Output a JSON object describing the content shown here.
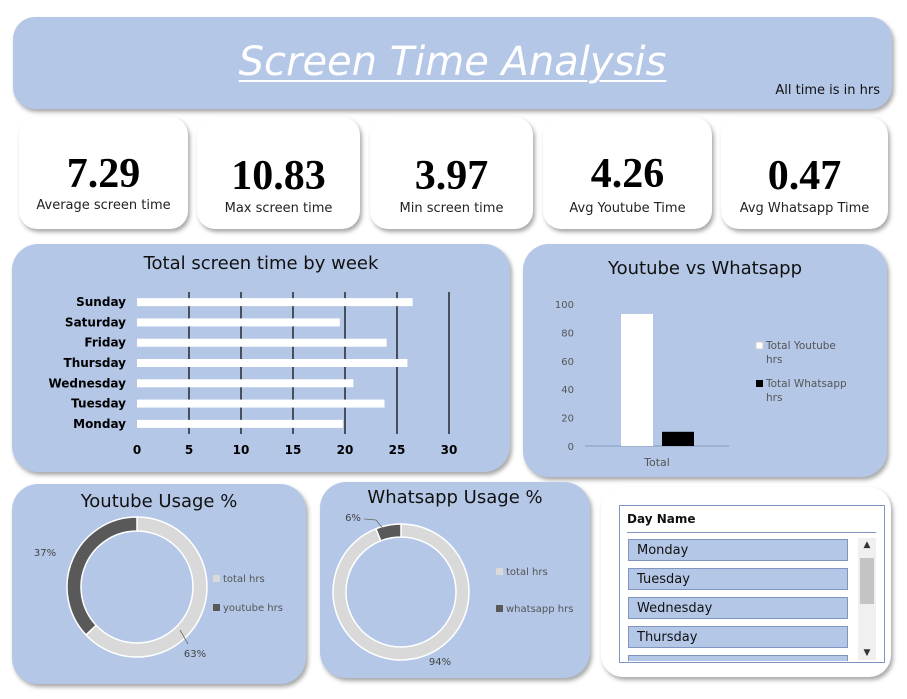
{
  "header": {
    "title": "Screen Time Analysis",
    "note": "All time is in hrs"
  },
  "kpis": [
    {
      "value": "7.29",
      "label": "Average screen time"
    },
    {
      "value": "10.83",
      "label": "Max screen time"
    },
    {
      "value": "3.97",
      "label": "Min screen time"
    },
    {
      "value": "4.26",
      "label": "Avg Youtube Time"
    },
    {
      "value": "0.47",
      "label": "Avg Whatsapp Time"
    }
  ],
  "slicer": {
    "title": "Day Name",
    "items": [
      "Monday",
      "Tuesday",
      "Wednesday",
      "Thursday"
    ]
  },
  "colors": {
    "panel": "#b4c7e7",
    "dark": "#595959",
    "light": "#d9d9d9",
    "bar": "#ffffff"
  },
  "chart_data": [
    {
      "type": "bar",
      "orientation": "horizontal",
      "title": "Total screen time by week",
      "categories": [
        "Sunday",
        "Saturday",
        "Friday",
        "Thursday",
        "Wednesday",
        "Tuesday",
        "Monday"
      ],
      "values": [
        26.5,
        19.5,
        24,
        26,
        20.8,
        23.8,
        19.8
      ],
      "xlim": [
        0,
        30
      ],
      "xticks": [
        "0",
        "5",
        "10",
        "15",
        "20",
        "25",
        "30"
      ],
      "grid": true
    },
    {
      "type": "bar",
      "title": "Youtube vs Whatsapp",
      "categories": [
        "Total"
      ],
      "series": [
        {
          "name": "Total Youtube hrs",
          "values": [
            93
          ]
        },
        {
          "name": "Total Whatsapp hrs",
          "values": [
            10
          ]
        }
      ],
      "ylim": [
        0,
        100
      ],
      "yticks": [
        "0",
        "20",
        "40",
        "60",
        "80",
        "100"
      ],
      "legend": "right"
    },
    {
      "type": "pie",
      "title": "Youtube Usage %",
      "labels": [
        "total hrs",
        "youtube hrs"
      ],
      "values": [
        63,
        37
      ],
      "display": [
        "63%",
        "37%"
      ],
      "legend": "right"
    },
    {
      "type": "pie",
      "title": "Whatsapp Usage %",
      "labels": [
        "total hrs",
        "whatsapp hrs"
      ],
      "values": [
        94,
        6
      ],
      "display": [
        "94%",
        "6%"
      ],
      "legend": "right"
    }
  ]
}
